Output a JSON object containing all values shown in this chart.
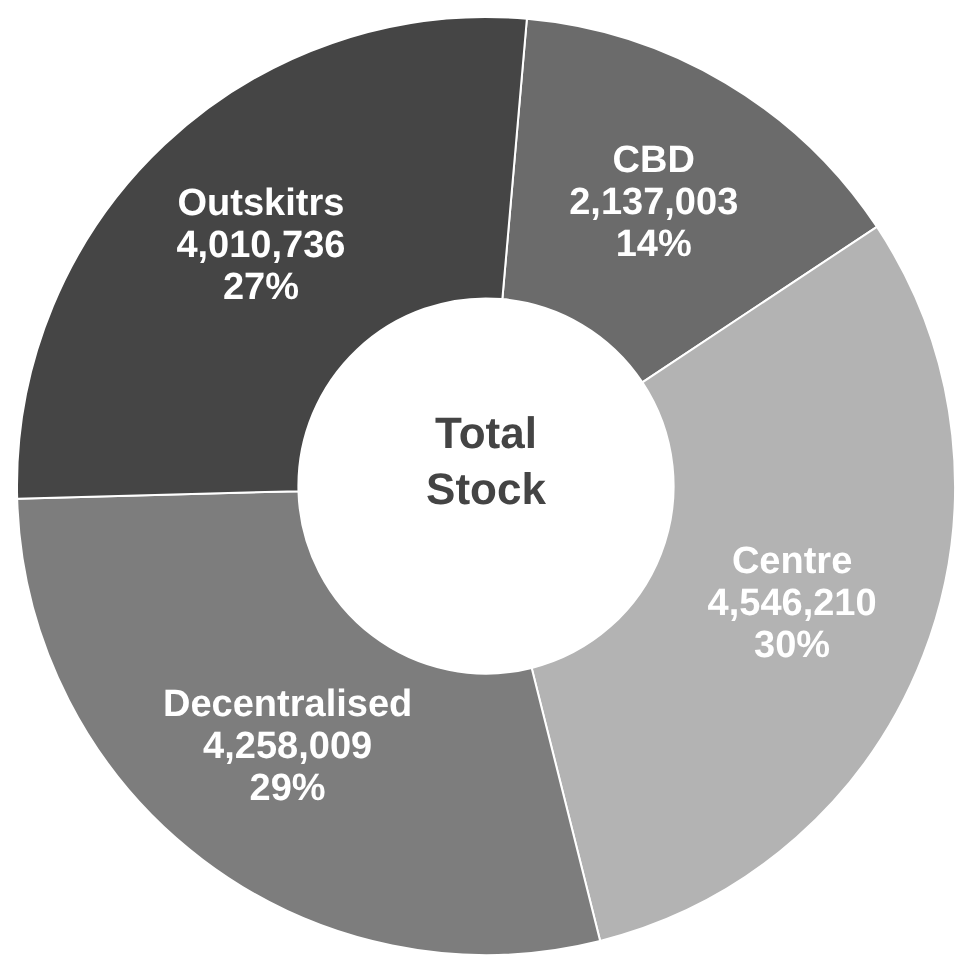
{
  "chart_data": {
    "type": "donut",
    "categories": [
      "CBD",
      "Centre",
      "Decentralised",
      "Outskitrs"
    ],
    "values": [
      2137003,
      4546210,
      4258009,
      4010736
    ],
    "colors": [
      "#6b6b6b",
      "#b3b3b3",
      "#7d7d7d",
      "#454545"
    ],
    "value_labels": [
      "2,137,003\n14%",
      "4,546,210\n30%",
      "4,258,009\n29%",
      "4,010,736\n27%"
    ],
    "annotations": [
      "Total Stock"
    ],
    "legend": false
  }
}
